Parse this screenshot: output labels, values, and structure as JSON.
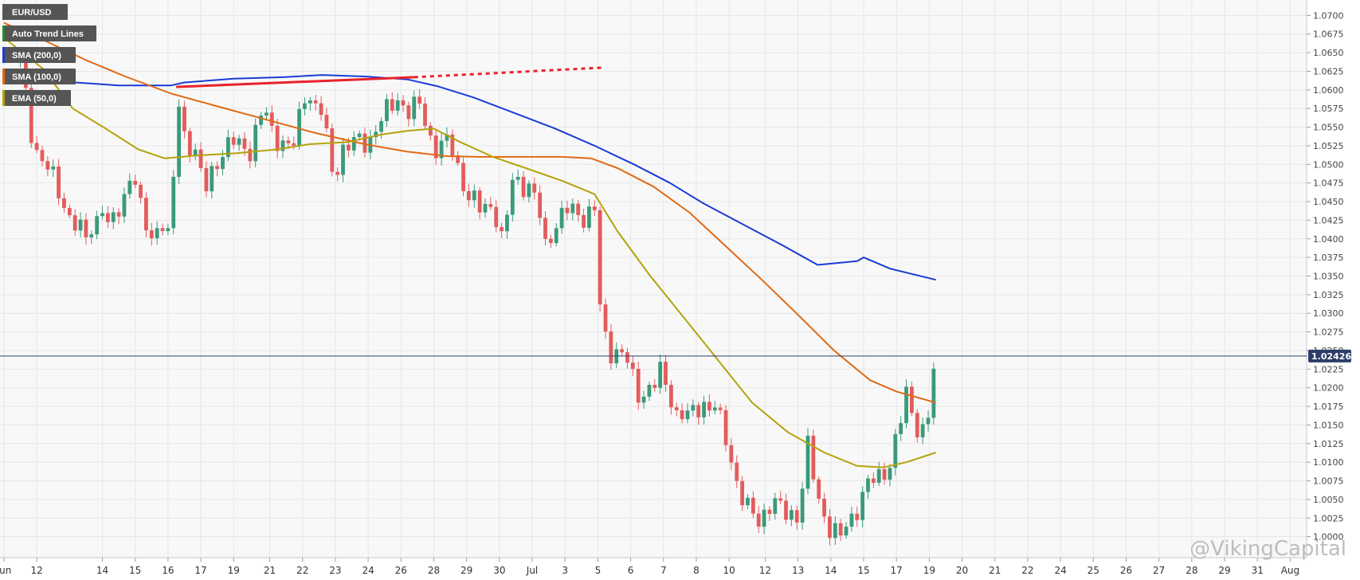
{
  "chart_data": {
    "type": "candlestick",
    "symbol": "EUR/USD",
    "current_price": "1.02426",
    "y_ticks": [
      "1.0000",
      "1.0025",
      "1.0050",
      "1.0075",
      "1.0100",
      "1.0125",
      "1.0150",
      "1.0175",
      "1.0200",
      "1.0225",
      "1.0250",
      "1.0275",
      "1.0300",
      "1.0325",
      "1.0350",
      "1.0375",
      "1.0400",
      "1.0425",
      "1.0450",
      "1.0475",
      "1.0500",
      "1.0525",
      "1.0550",
      "1.0575",
      "1.0600",
      "1.0625",
      "1.0650",
      "1.0675",
      "1.0700"
    ],
    "ylim": [
      0.9975,
      1.071
    ],
    "x_ticks": [
      {
        "label": "Jun",
        "t": -0.5
      },
      {
        "label": "12",
        "t": 0.5
      },
      {
        "label": "14",
        "t": 2.5
      },
      {
        "label": "15",
        "t": 3.5
      },
      {
        "label": "16",
        "t": 4.5
      },
      {
        "label": "17",
        "t": 5.5
      },
      {
        "label": "19",
        "t": 6.5
      },
      {
        "label": "21",
        "t": 7.6
      },
      {
        "label": "22",
        "t": 8.6
      },
      {
        "label": "23",
        "t": 9.6
      },
      {
        "label": "24",
        "t": 10.6
      },
      {
        "label": "26",
        "t": 11.6
      },
      {
        "label": "28",
        "t": 12.6
      },
      {
        "label": "29",
        "t": 13.6
      },
      {
        "label": "30",
        "t": 14.6
      },
      {
        "label": "Jul",
        "t": 15.6
      },
      {
        "label": "3",
        "t": 16.6
      },
      {
        "label": "5",
        "t": 17.6
      },
      {
        "label": "6",
        "t": 18.6
      },
      {
        "label": "7",
        "t": 19.6
      },
      {
        "label": "8",
        "t": 20.6
      },
      {
        "label": "10",
        "t": 21.6
      },
      {
        "label": "12",
        "t": 22.7
      },
      {
        "label": "13",
        "t": 23.7
      },
      {
        "label": "14",
        "t": 24.7
      },
      {
        "label": "15",
        "t": 25.7
      },
      {
        "label": "17",
        "t": 26.7
      },
      {
        "label": "19",
        "t": 27.7
      },
      {
        "label": "20",
        "t": 28.7
      },
      {
        "label": "21",
        "t": 29.7
      },
      {
        "label": "22",
        "t": 30.7
      },
      {
        "label": "24",
        "t": 31.7
      },
      {
        "label": "25",
        "t": 32.7
      },
      {
        "label": "26",
        "t": 33.7
      },
      {
        "label": "27",
        "t": 34.7
      },
      {
        "label": "28",
        "t": 35.7
      },
      {
        "label": "29",
        "t": 36.7
      },
      {
        "label": "31",
        "t": 37.7
      },
      {
        "label": "Aug",
        "t": 38.7
      }
    ],
    "xlim": [
      -0.62,
      39.2
    ],
    "candle_anchors": [
      [
        0,
        1.064
      ],
      [
        0.4,
        1.0525
      ],
      [
        0.9,
        1.049
      ],
      [
        1.5,
        1.043
      ],
      [
        2.0,
        1.04
      ],
      [
        2.5,
        1.044
      ],
      [
        2.7,
        1.041
      ],
      [
        3.2,
        1.046
      ],
      [
        3.4,
        1.05
      ],
      [
        3.7,
        1.043
      ],
      [
        4.0,
        1.04
      ],
      [
        4.3,
        1.043
      ],
      [
        4.6,
        1.0385
      ],
      [
        4.75,
        1.06
      ],
      [
        5.0,
        1.054
      ],
      [
        5.4,
        1.051
      ],
      [
        5.6,
        1.046
      ],
      [
        6.0,
        1.051
      ],
      [
        6.5,
        1.053
      ],
      [
        7.0,
        1.052
      ],
      [
        7.4,
        1.0575
      ],
      [
        7.7,
        1.054
      ],
      [
        8.3,
        1.052
      ],
      [
        8.7,
        1.06
      ],
      [
        9.2,
        1.057
      ],
      [
        9.5,
        1.049
      ],
      [
        9.8,
        1.052
      ],
      [
        10.2,
        1.053
      ],
      [
        10.6,
        1.053
      ],
      [
        11.0,
        1.056
      ],
      [
        11.5,
        1.059
      ],
      [
        11.8,
        1.057
      ],
      [
        12.2,
        1.058
      ],
      [
        12.6,
        1.052
      ],
      [
        13.1,
        1.053
      ],
      [
        13.6,
        1.046
      ],
      [
        14.0,
        1.044
      ],
      [
        14.4,
        1.045
      ],
      [
        14.7,
        1.039
      ],
      [
        15.0,
        1.048
      ],
      [
        15.5,
        1.047
      ],
      [
        15.8,
        1.044
      ],
      [
        16.0,
        1.039
      ],
      [
        16.3,
        1.042
      ],
      [
        16.7,
        1.044
      ],
      [
        17.2,
        1.043
      ],
      [
        17.5,
        1.044
      ],
      [
        17.7,
        1.028
      ],
      [
        18.0,
        1.025
      ],
      [
        18.4,
        1.025
      ],
      [
        18.8,
        1.019
      ],
      [
        19.2,
        1.02
      ],
      [
        19.5,
        1.022
      ],
      [
        20.0,
        1.017
      ],
      [
        20.4,
        1.016
      ],
      [
        20.8,
        1.018
      ],
      [
        21.2,
        1.017
      ],
      [
        21.5,
        1.013
      ],
      [
        21.8,
        1.008
      ],
      [
        22.1,
        1.004
      ],
      [
        22.5,
        1.002
      ],
      [
        22.9,
        1.005
      ],
      [
        23.3,
        1.003
      ],
      [
        23.7,
        1.003
      ],
      [
        24.0,
        1.012
      ],
      [
        24.3,
        1.005
      ],
      [
        24.7,
        1.001
      ],
      [
        25.0,
        1.0
      ],
      [
        25.4,
        1.003
      ],
      [
        25.8,
        1.007
      ],
      [
        26.2,
        1.008
      ],
      [
        26.5,
        1.01
      ],
      [
        26.8,
        1.015
      ],
      [
        27.0,
        1.019
      ],
      [
        27.3,
        1.015
      ],
      [
        27.6,
        1.014
      ],
      [
        27.9,
        1.0242
      ]
    ],
    "series": [
      {
        "name": "SMA (200,0)",
        "color": "#1a3cd4",
        "points": [
          [
            -0.5,
            1.062
          ],
          [
            1.0,
            1.0612
          ],
          [
            3.0,
            1.0606
          ],
          [
            4.6,
            1.0606
          ],
          [
            5.0,
            1.061
          ],
          [
            6.5,
            1.0615
          ],
          [
            8.0,
            1.0617
          ],
          [
            9.2,
            1.062
          ],
          [
            10.5,
            1.0618
          ],
          [
            11.8,
            1.0614
          ],
          [
            12.7,
            1.0605
          ],
          [
            13.8,
            1.059
          ],
          [
            15.0,
            1.057
          ],
          [
            16.3,
            1.0548
          ],
          [
            17.5,
            1.0525
          ],
          [
            18.7,
            1.05
          ],
          [
            19.8,
            1.0475
          ],
          [
            20.8,
            1.0448
          ],
          [
            22.0,
            1.042
          ],
          [
            23.2,
            1.0392
          ],
          [
            24.3,
            1.0365
          ],
          [
            25.5,
            1.037
          ],
          [
            25.7,
            1.0375
          ],
          [
            26.5,
            1.036
          ],
          [
            27.9,
            1.0345
          ]
        ]
      },
      {
        "name": "SMA (100,0)",
        "color": "#e06a14",
        "points": [
          [
            -0.5,
            1.069
          ],
          [
            0.8,
            1.0665
          ],
          [
            2.0,
            1.064
          ],
          [
            3.2,
            1.0618
          ],
          [
            4.6,
            1.0595
          ],
          [
            6.0,
            1.0578
          ],
          [
            7.5,
            1.056
          ],
          [
            9.0,
            1.0542
          ],
          [
            10.5,
            1.0527
          ],
          [
            11.8,
            1.0517
          ],
          [
            13.0,
            1.0511
          ],
          [
            14.0,
            1.051
          ],
          [
            15.0,
            1.051
          ],
          [
            15.8,
            1.051
          ],
          [
            16.5,
            1.051
          ],
          [
            17.4,
            1.0508
          ],
          [
            18.2,
            1.0495
          ],
          [
            19.3,
            1.047
          ],
          [
            20.4,
            1.0435
          ],
          [
            21.5,
            1.039
          ],
          [
            22.6,
            1.0345
          ],
          [
            23.7,
            1.0298
          ],
          [
            24.8,
            1.025
          ],
          [
            25.9,
            1.021
          ],
          [
            26.7,
            1.0195
          ],
          [
            27.9,
            1.018
          ]
        ]
      },
      {
        "name": "EMA (50,0)",
        "color": "#b5a20c",
        "points": [
          [
            -0.5,
            1.067
          ],
          [
            0.7,
            1.0628
          ],
          [
            1.6,
            1.0575
          ],
          [
            2.6,
            1.0548
          ],
          [
            3.6,
            1.052
          ],
          [
            4.4,
            1.0508
          ],
          [
            5.4,
            1.0512
          ],
          [
            6.6,
            1.0515
          ],
          [
            7.8,
            1.052
          ],
          [
            8.8,
            1.0527
          ],
          [
            10.0,
            1.053
          ],
          [
            11.0,
            1.054
          ],
          [
            11.8,
            1.0545
          ],
          [
            12.6,
            1.0548
          ],
          [
            13.4,
            1.053
          ],
          [
            14.4,
            1.051
          ],
          [
            15.4,
            1.0495
          ],
          [
            16.5,
            1.0478
          ],
          [
            17.5,
            1.046
          ],
          [
            18.2,
            1.041
          ],
          [
            19.2,
            1.035
          ],
          [
            20.3,
            1.029
          ],
          [
            21.3,
            1.0235
          ],
          [
            22.3,
            1.018
          ],
          [
            23.4,
            1.014
          ],
          [
            24.5,
            1.0113
          ],
          [
            25.5,
            1.0095
          ],
          [
            26.3,
            1.0093
          ],
          [
            27.0,
            1.01
          ],
          [
            27.9,
            1.0113
          ]
        ]
      }
    ],
    "trend_line": {
      "color": "#e8232a",
      "solid": [
        [
          4.75,
          1.0604
        ],
        [
          12.0,
          1.0617
        ]
      ],
      "dashed": [
        [
          12.0,
          1.0617
        ],
        [
          17.8,
          1.063
        ]
      ]
    },
    "legend": [
      {
        "label": "EUR/USD",
        "marker_color": "#555555"
      },
      {
        "label": "Auto Trend Lines",
        "marker_color": "#2a8a2a"
      },
      {
        "label": "SMA (200,0)",
        "marker_color": "#1a3cd4"
      },
      {
        "label": "SMA (100,0)",
        "marker_color": "#e06a14"
      },
      {
        "label": "EMA (50,0)",
        "marker_color": "#b5a20c"
      }
    ],
    "colors": {
      "up": "#3a9a7a",
      "down": "#e35c5c",
      "grid": "#e6e6e6",
      "price_line": "#2c3e66",
      "price_tag": "#2c3e66"
    }
  },
  "watermark": "@VikingCapital"
}
